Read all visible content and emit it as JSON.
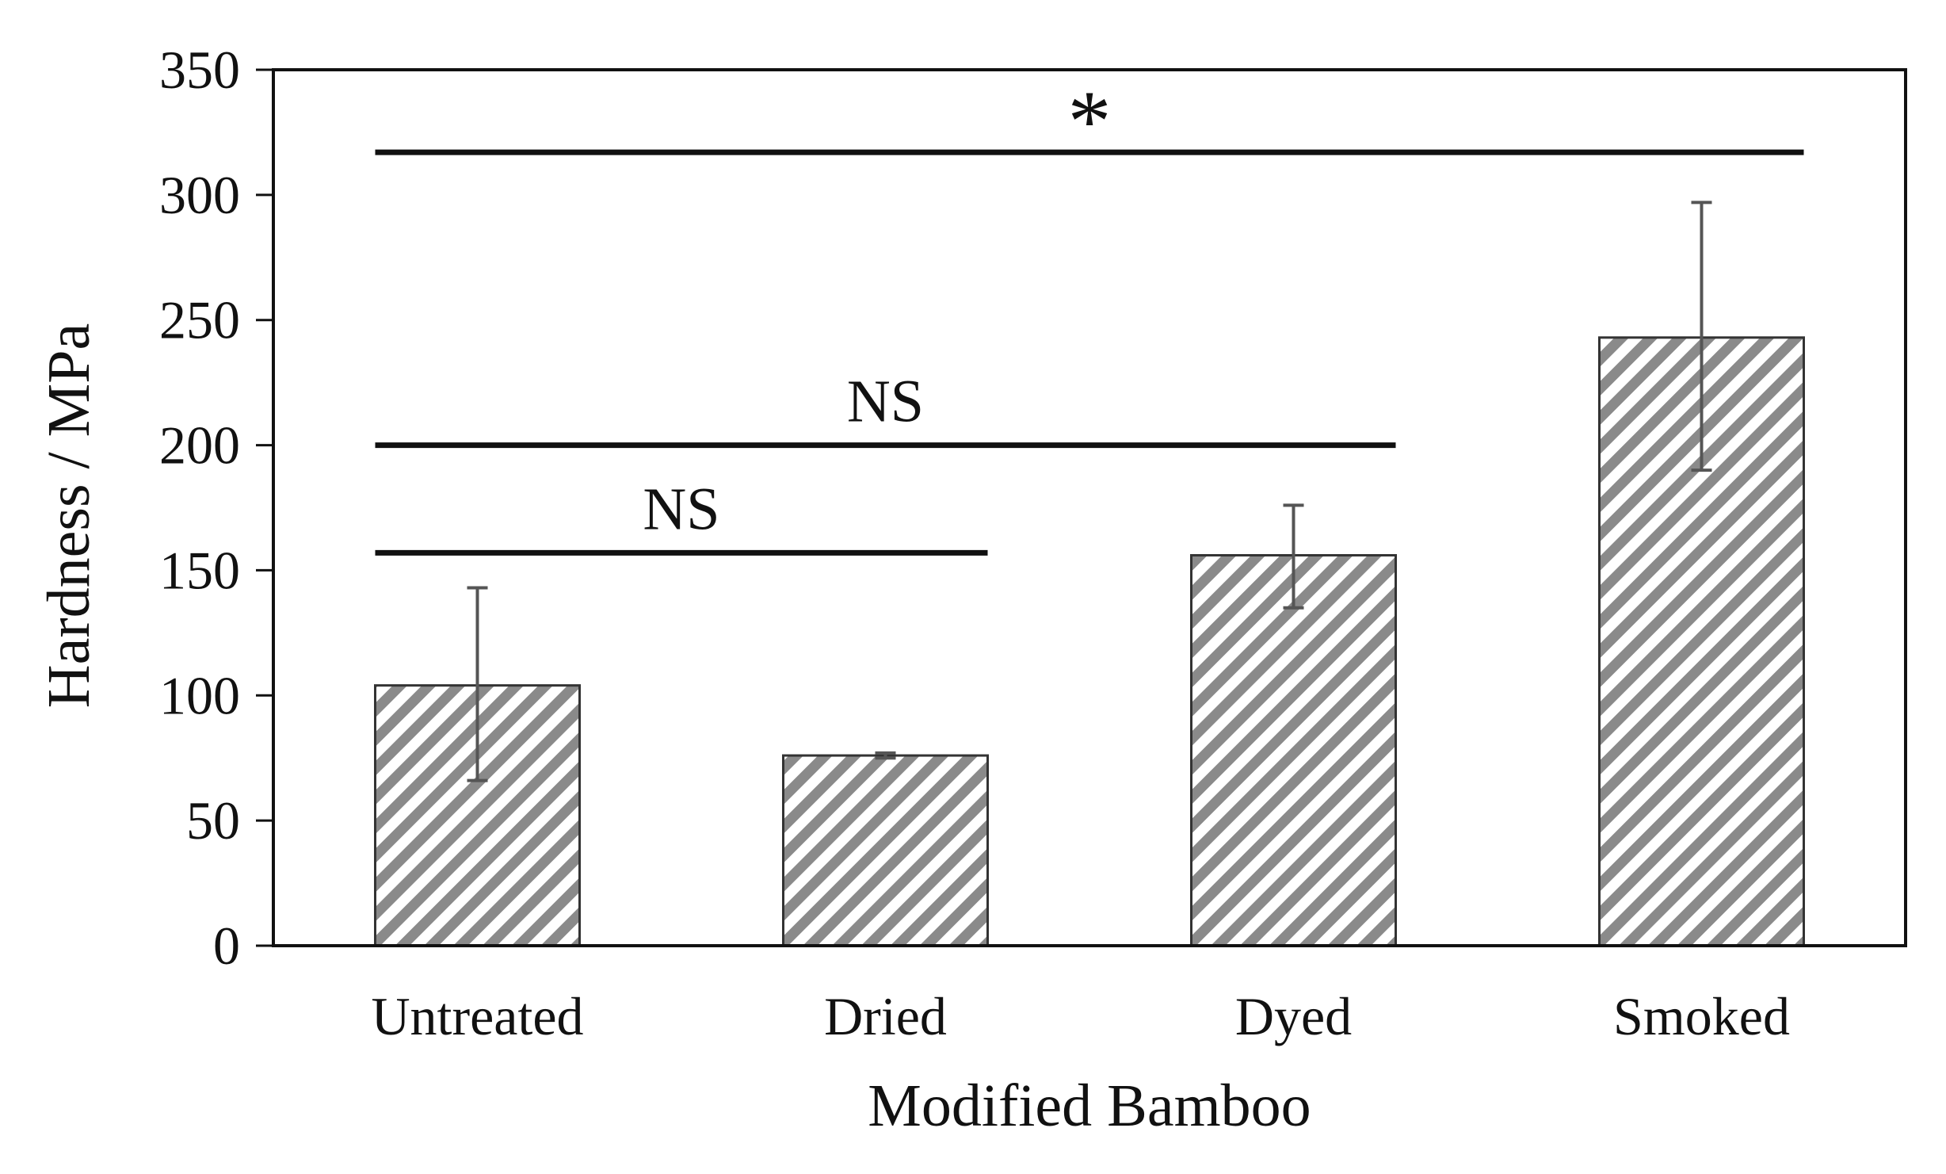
{
  "chart_data": {
    "type": "bar",
    "categories": [
      "Untreated",
      "Dried",
      "Dyed",
      "Smoked"
    ],
    "values": [
      104,
      76,
      156,
      243
    ],
    "error_bars": [
      {
        "low": 66,
        "high": 143
      },
      {
        "low": 75,
        "high": 77
      },
      {
        "low": 135,
        "high": 176
      },
      {
        "low": 190,
        "high": 297
      }
    ],
    "xlabel": "Modified Bamboo",
    "ylabel": "Hardness / MPa",
    "ylim": [
      0,
      350
    ],
    "yticks": [
      "0",
      "50",
      "100",
      "150",
      "200",
      "250",
      "300",
      "350"
    ],
    "ytick_values": [
      0,
      50,
      100,
      150,
      200,
      250,
      300,
      350
    ],
    "grid": false,
    "bar_fill": "diagonal-hatch",
    "colors": {
      "hatch": "#8a8a8a",
      "bar_edge": "#333333",
      "axis": "#111111",
      "error_bar": "#555555",
      "significance_line": "#111111"
    },
    "annotations": [
      {
        "label": "NS",
        "from": "Untreated",
        "to": "Dried",
        "y": 157
      },
      {
        "label": "NS",
        "from": "Untreated",
        "to": "Dyed",
        "y": 200
      },
      {
        "label": "*",
        "from": "Untreated",
        "to": "Smoked",
        "y": 317
      }
    ]
  }
}
